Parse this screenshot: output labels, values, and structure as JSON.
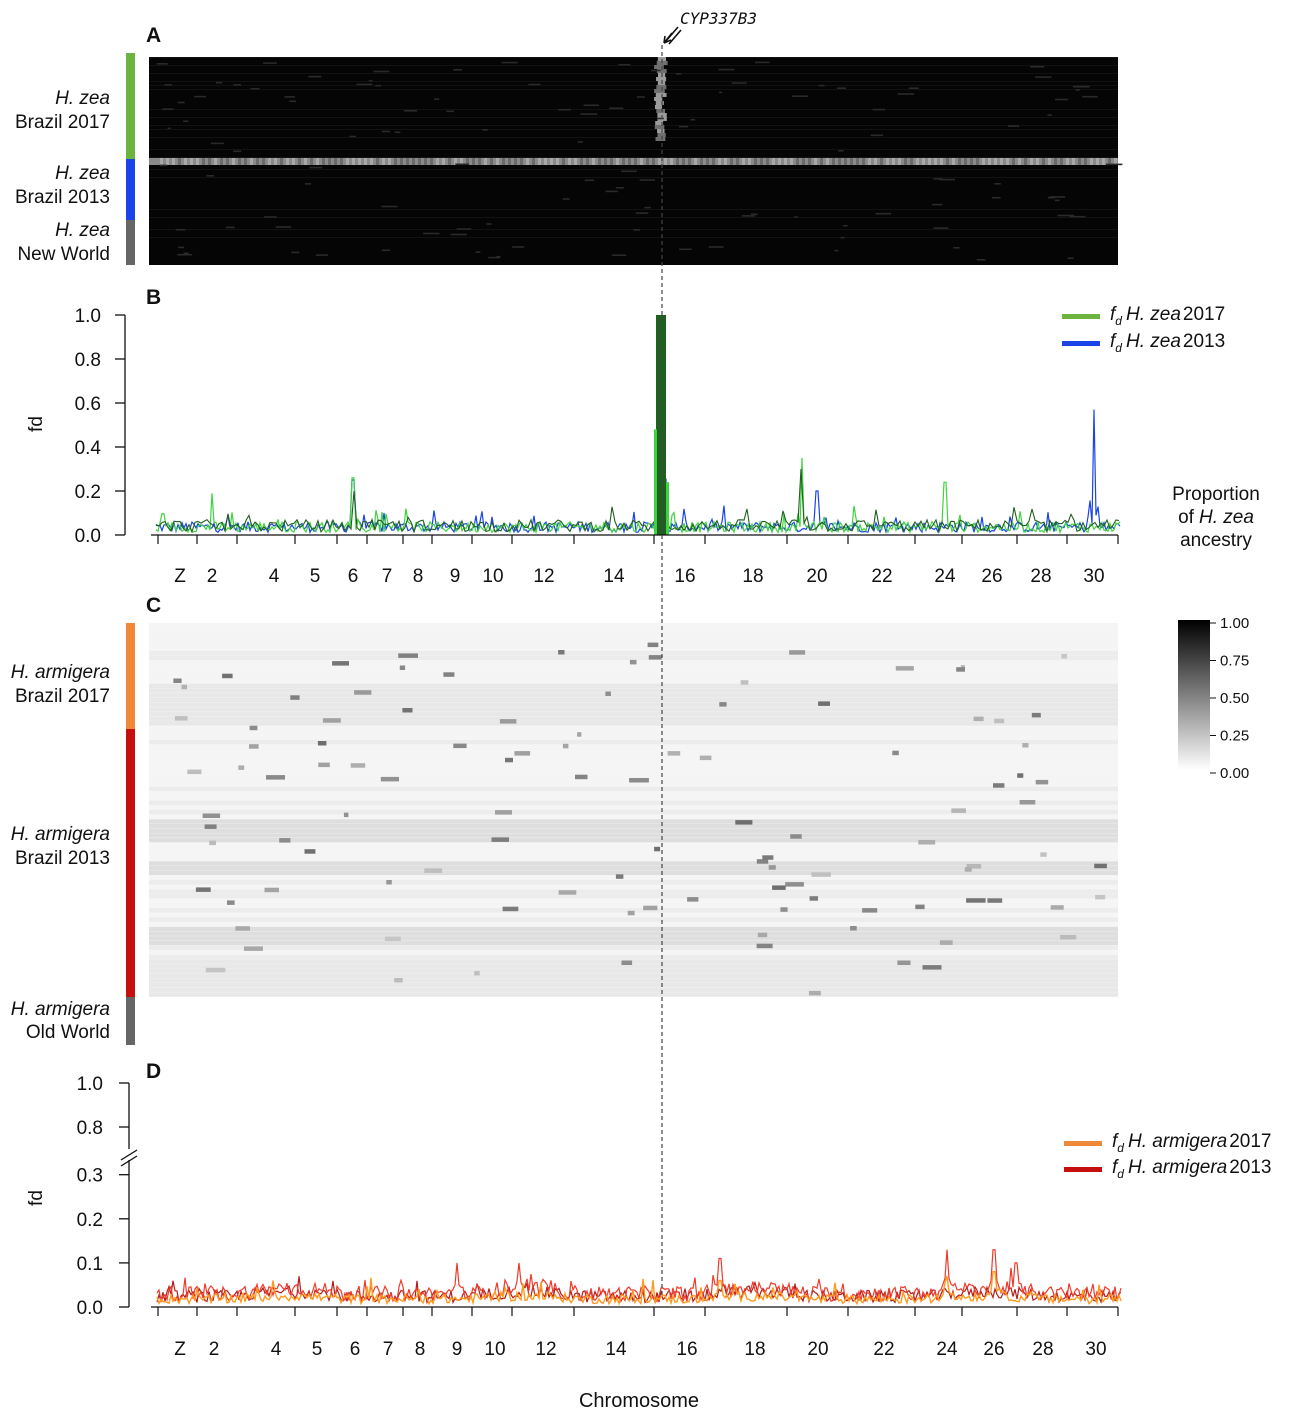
{
  "gene_marker": "CYP337B3",
  "x_axis_title": "Chromosome",
  "chromosome_ticks": [
    "Z",
    "2",
    "4",
    "5",
    "6",
    "7",
    "8",
    "9",
    "10",
    "12",
    "14",
    "16",
    "18",
    "20",
    "22",
    "24",
    "26",
    "28",
    "30"
  ],
  "colors": {
    "zea2017": "#6db33f",
    "zea2013": "#1a44e8",
    "zeaNewWorld": "#666666",
    "arm2017": "#f0883a",
    "arm2013": "#c50e0e",
    "armOldWorld": "#666666",
    "zea_fd_dark": "#1f5f1f",
    "zea_fd_light": "#3fd43f",
    "arm_fd_dark": "#b31d1d",
    "arm_fd_light": "#ff9a1e"
  },
  "panels": {
    "A": {
      "label": "A",
      "groups": [
        {
          "italic": "H. zea",
          "text": "Brazil 2017",
          "color_key": "zea2017"
        },
        {
          "italic": "H. zea",
          "text": "Brazil 2013",
          "color_key": "zea2013"
        },
        {
          "italic": "H. zea",
          "text": "New World",
          "color_key": "zeaNewWorld"
        }
      ]
    },
    "B": {
      "label": "B",
      "ylabel": "fd",
      "yticks": [
        "1.0",
        "0.8",
        "0.6",
        "0.4",
        "0.2",
        "0.0"
      ],
      "legend": [
        {
          "sym": "f",
          "sub": "d",
          "italic": "H. zea",
          "year": "2017",
          "color_key": "zea2017"
        },
        {
          "sym": "f",
          "sub": "d",
          "italic": "H. zea",
          "year": "2013",
          "color_key": "zea2013"
        }
      ]
    },
    "C": {
      "label": "C",
      "groups": [
        {
          "italic": "H. armigera",
          "text": "Brazil 2017",
          "color_key": "arm2017"
        },
        {
          "italic": "H. armigera",
          "text": "Brazil 2013",
          "color_key": "arm2013"
        },
        {
          "italic": "H. armigera",
          "text": "Old World",
          "color_key": "armOldWorld"
        }
      ]
    },
    "D": {
      "label": "D",
      "ylabel": "fd",
      "yticks_upper": [
        "1.0",
        "0.8"
      ],
      "yticks_lower": [
        "0.3",
        "0.2",
        "0.1",
        "0.0"
      ],
      "legend": [
        {
          "sym": "f",
          "sub": "d",
          "italic": "H. armigera",
          "year": "2017",
          "color_key": "arm2017"
        },
        {
          "sym": "f",
          "sub": "d",
          "italic": "H. armigera",
          "year": "2013",
          "color_key": "arm2013"
        }
      ]
    }
  },
  "colorbar": {
    "title_lines": [
      "Proportion",
      "H. zea",
      "ancestry"
    ],
    "title_prefix": "of",
    "ticks": [
      "1.00",
      "0.75",
      "0.50",
      "0.25",
      "0.00"
    ]
  },
  "chart_data": [
    {
      "type": "heatmap",
      "panel": "A",
      "xlabel": "Chromosome",
      "value_range": [
        0,
        1
      ],
      "description_rows": [
        "H. zea Brazil 2017",
        "H. zea Brazil 2013",
        "H. zea New World"
      ],
      "notable": [
        {
          "chromosome": "15",
          "feature": "CYP337B3",
          "value_approx": 0.6
        }
      ]
    },
    {
      "type": "line",
      "panel": "B",
      "xlabel": "Chromosome",
      "ylabel": "fd",
      "ylim": [
        0,
        1
      ],
      "series": [
        {
          "name": "fd H. zea 2017",
          "peaks": [
            {
              "x": "15",
              "y": 1.0
            },
            {
              "x": "19",
              "y": 0.35
            },
            {
              "x": "24",
              "y": 0.24
            },
            {
              "x": "6",
              "y": 0.26
            },
            {
              "x": "2",
              "y": 0.19
            }
          ],
          "baseline": 0.03
        },
        {
          "name": "fd H. zea 2013",
          "peaks": [
            {
              "x": "15",
              "y": 1.0
            },
            {
              "x": "30",
              "y": 0.57
            },
            {
              "x": "6",
              "y": 0.25
            },
            {
              "x": "20",
              "y": 0.2
            }
          ],
          "baseline": 0.03
        }
      ]
    },
    {
      "type": "heatmap",
      "panel": "C",
      "xlabel": "Chromosome",
      "value_range": [
        0,
        1
      ],
      "description_rows": [
        "H. armigera Brazil 2017",
        "H. armigera Brazil 2013",
        "H. armigera Old World"
      ],
      "typical_value": 0.1
    },
    {
      "type": "line",
      "panel": "D",
      "xlabel": "Chromosome",
      "ylabel": "fd",
      "ylim": [
        0,
        1
      ],
      "axis_break": [
        0.3,
        0.8
      ],
      "series": [
        {
          "name": "fd H. armigera 2017",
          "peaks": [
            {
              "x": "17",
              "y": 0.06
            },
            {
              "x": "24",
              "y": 0.07
            },
            {
              "x": "26",
              "y": 0.08
            }
          ],
          "baseline": 0.015
        },
        {
          "name": "fd H. armigera 2013",
          "peaks": [
            {
              "x": "24",
              "y": 0.13
            },
            {
              "x": "26",
              "y": 0.13
            },
            {
              "x": "17",
              "y": 0.11
            },
            {
              "x": "27",
              "y": 0.1
            },
            {
              "x": "11",
              "y": 0.1
            },
            {
              "x": "9",
              "y": 0.1
            }
          ],
          "baseline": 0.025
        }
      ]
    }
  ]
}
